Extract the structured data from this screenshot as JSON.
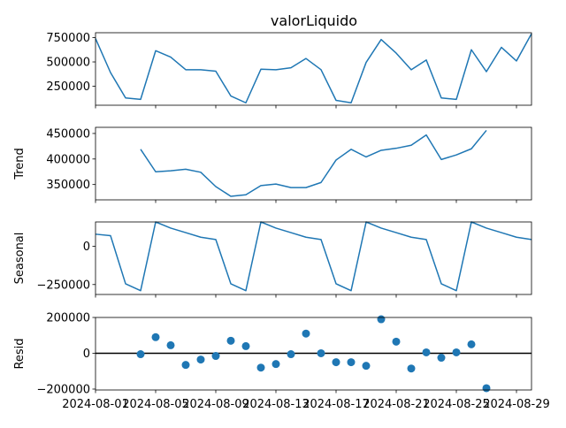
{
  "title": "valorLiquido",
  "chart_data": {
    "type": "line",
    "title": "valorLiquido",
    "x": [
      "2024-08-01",
      "2024-08-02",
      "2024-08-03",
      "2024-08-04",
      "2024-08-05",
      "2024-08-06",
      "2024-08-07",
      "2024-08-08",
      "2024-08-09",
      "2024-08-10",
      "2024-08-11",
      "2024-08-12",
      "2024-08-13",
      "2024-08-14",
      "2024-08-15",
      "2024-08-16",
      "2024-08-17",
      "2024-08-18",
      "2024-08-19",
      "2024-08-20",
      "2024-08-21",
      "2024-08-22",
      "2024-08-23",
      "2024-08-24",
      "2024-08-25",
      "2024-08-26",
      "2024-08-27",
      "2024-08-28",
      "2024-08-29",
      "2024-08-30"
    ],
    "xtick_labels": [
      "2024-08-01",
      "2024-08-05",
      "2024-08-09",
      "2024-08-13",
      "2024-08-17",
      "2024-08-21",
      "2024-08-25",
      "2024-08-29"
    ],
    "xlim": [
      "2024-08-01",
      "2024-08-30"
    ],
    "panels": [
      {
        "name": "observed",
        "ylabel": "",
        "kind": "line",
        "ylim": [
          55000,
          800000
        ],
        "yticks": [
          250000,
          500000,
          750000
        ],
        "ytick_labels": [
          "250000",
          "500000",
          "750000"
        ],
        "values": [
          740000,
          390000,
          130000,
          115000,
          615000,
          550000,
          420000,
          420000,
          405000,
          150000,
          80000,
          425000,
          420000,
          440000,
          535000,
          420000,
          105000,
          80000,
          495000,
          730000,
          590000,
          420000,
          520000,
          130000,
          115000,
          625000,
          400000,
          650000,
          510000,
          790000
        ]
      },
      {
        "name": "trend",
        "ylabel": "Trend",
        "kind": "line",
        "ylim": [
          320000,
          462000
        ],
        "yticks": [
          350000,
          400000,
          450000
        ],
        "ytick_labels": [
          "350000",
          "400000",
          "450000"
        ],
        "values": [
          null,
          null,
          null,
          419000,
          375000,
          377000,
          380000,
          374000,
          346000,
          327000,
          330000,
          348000,
          351000,
          344000,
          344000,
          354000,
          398000,
          419000,
          404000,
          417000,
          421000,
          427000,
          447000,
          399000,
          408000,
          420000,
          456000,
          null,
          null,
          null
        ]
      },
      {
        "name": "seasonal",
        "ylabel": "Seasonal",
        "kind": "line",
        "ylim": [
          -315000,
          160000
        ],
        "yticks": [
          -250000,
          0
        ],
        "ytick_labels": [
          "−250000",
          "0"
        ],
        "values": [
          80000,
          70000,
          -245000,
          -290000,
          160000,
          120000,
          90000,
          60000,
          45000,
          -245000,
          -290000,
          160000,
          120000,
          90000,
          60000,
          45000,
          -245000,
          -290000,
          160000,
          120000,
          90000,
          60000,
          45000,
          -245000,
          -290000,
          160000,
          120000,
          90000,
          60000,
          45000
        ]
      },
      {
        "name": "resid",
        "ylabel": "Resid",
        "kind": "scatter",
        "ylim": [
          -205000,
          200000
        ],
        "yticks": [
          -200000,
          0,
          200000
        ],
        "ytick_labels": [
          "−200000",
          "0",
          "200000"
        ],
        "baseline": 0,
        "values": [
          null,
          null,
          null,
          -5000,
          90000,
          45000,
          -65000,
          -35000,
          -15000,
          70000,
          40000,
          -80000,
          -60000,
          -5000,
          110000,
          0,
          -50000,
          -50000,
          -70000,
          190000,
          65000,
          -85000,
          5000,
          -25000,
          5000,
          50000,
          -195000,
          null,
          null,
          null
        ]
      }
    ]
  }
}
